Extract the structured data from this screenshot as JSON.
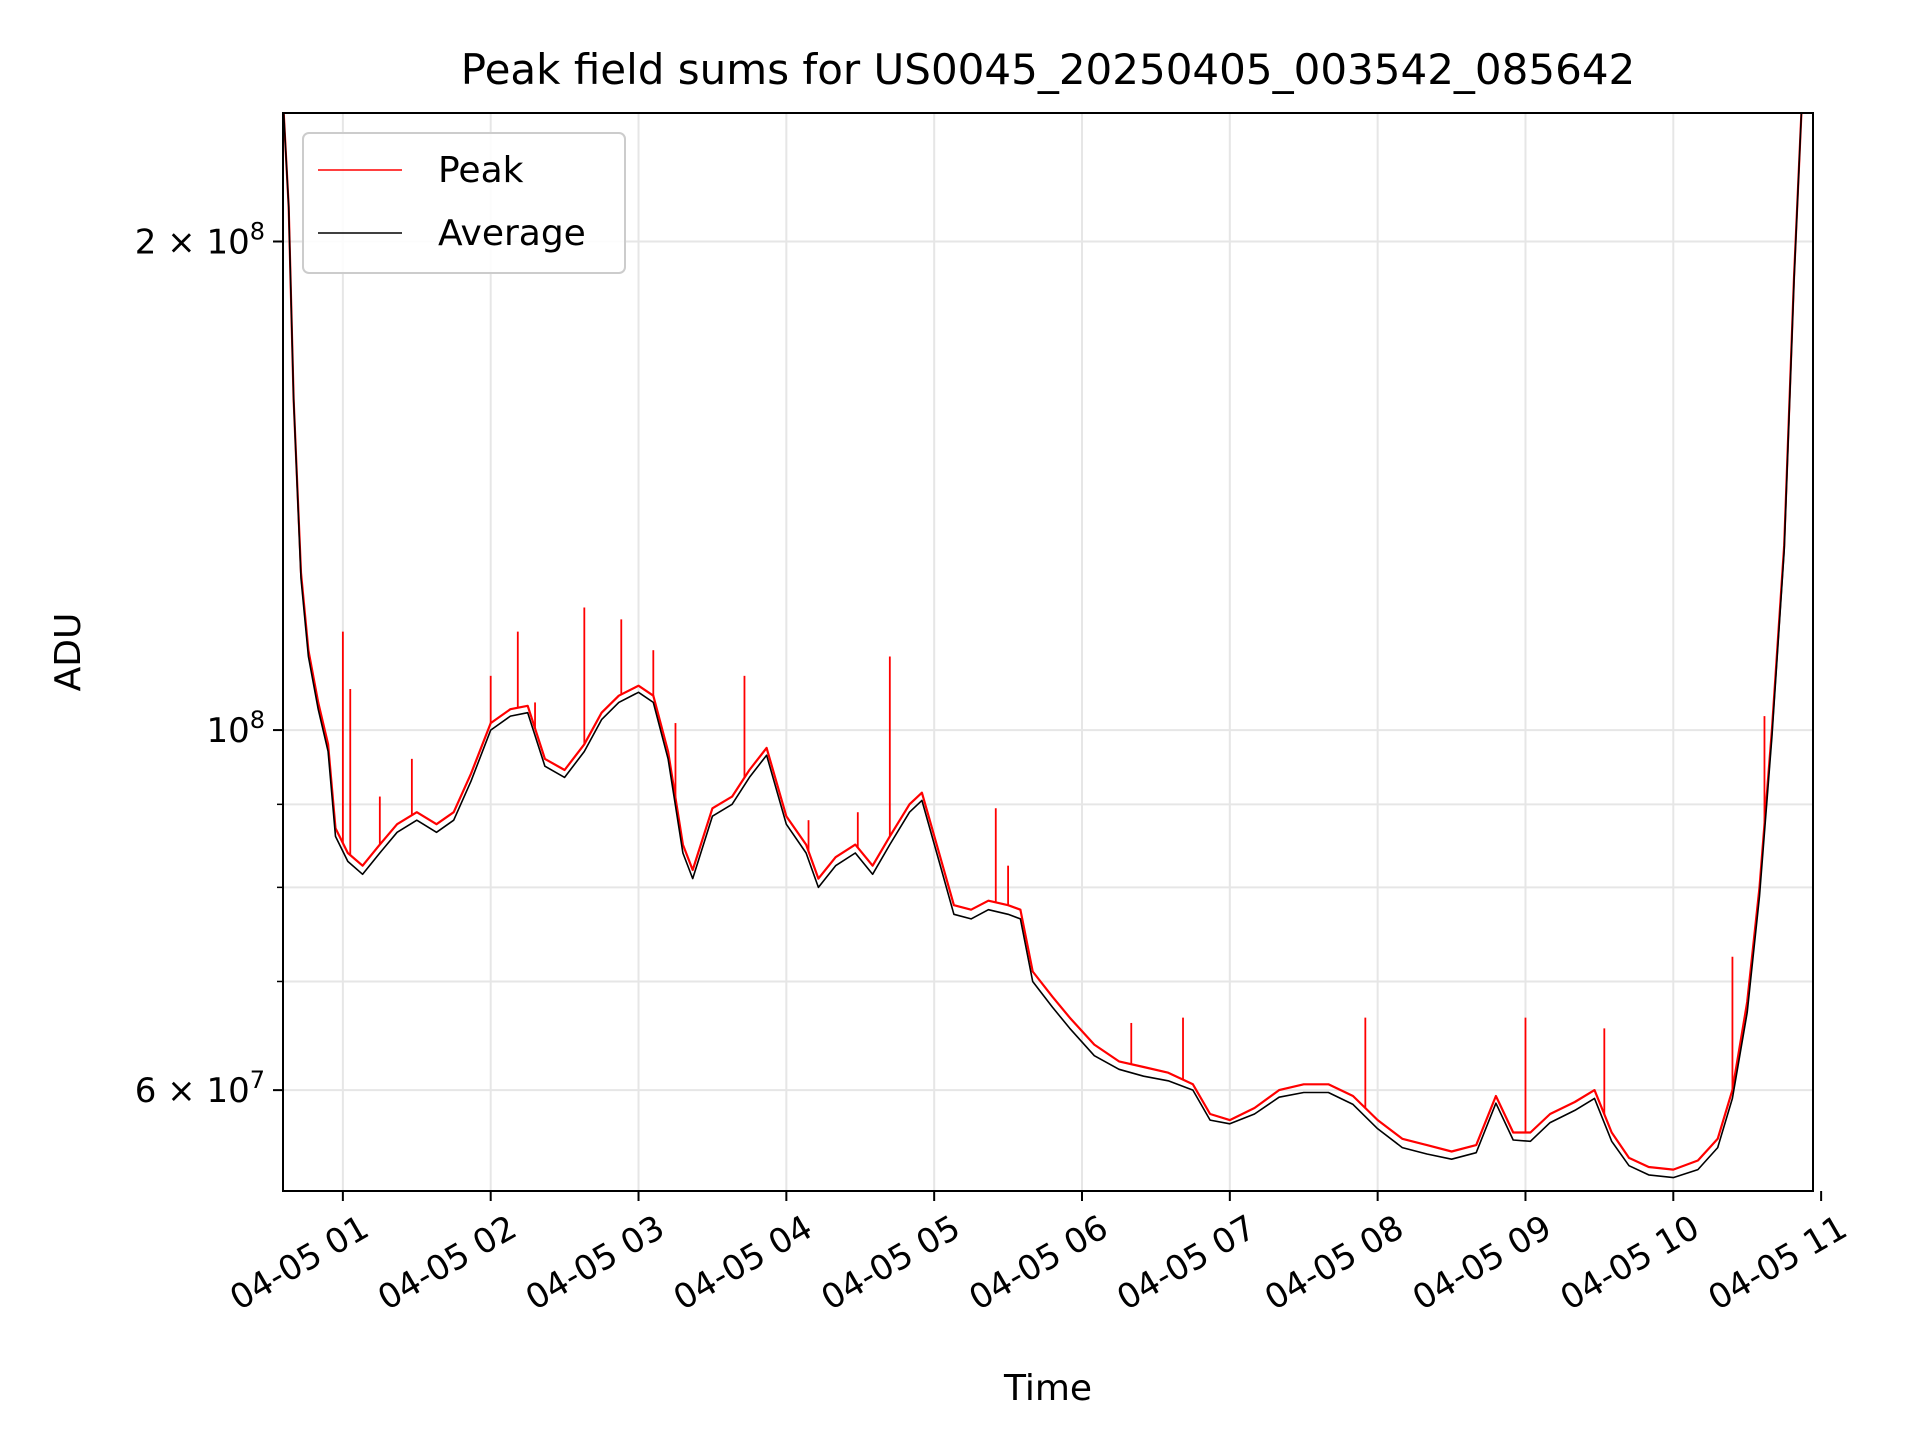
{
  "chart_data": {
    "type": "line",
    "title": "Peak field sums for US0045_20250405_003542_085642",
    "xlabel": "Time",
    "ylabel": "ADU",
    "yscale": "log",
    "xlim": [
      "2025-04-05T00:35:42",
      "2025-04-05T10:56:42"
    ],
    "ylim": [
      52000000,
      240000000
    ],
    "grid": true,
    "legend": {
      "placement": "top-left"
    },
    "x_ticks": [
      {
        "t": "2025-04-05T01:00",
        "label": "04-05 01"
      },
      {
        "t": "2025-04-05T02:00",
        "label": "04-05 02"
      },
      {
        "t": "2025-04-05T03:00",
        "label": "04-05 03"
      },
      {
        "t": "2025-04-05T04:00",
        "label": "04-05 04"
      },
      {
        "t": "2025-04-05T05:00",
        "label": "04-05 05"
      },
      {
        "t": "2025-04-05T06:00",
        "label": "04-05 06"
      },
      {
        "t": "2025-04-05T07:00",
        "label": "04-05 07"
      },
      {
        "t": "2025-04-05T08:00",
        "label": "04-05 08"
      },
      {
        "t": "2025-04-05T09:00",
        "label": "04-05 09"
      },
      {
        "t": "2025-04-05T10:00",
        "label": "04-05 10"
      },
      {
        "t": "2025-04-05T11:00",
        "label": "04-05 11"
      }
    ],
    "y_major_ticks": [
      {
        "value": 60000000,
        "mantissa": "6",
        "exponent": "7"
      },
      {
        "value": 100000000,
        "mantissa": "",
        "exponent": "8"
      },
      {
        "value": 200000000,
        "mantissa": "2",
        "exponent": "8"
      }
    ],
    "y_minor_gridlines": [
      70000000,
      80000000,
      90000000
    ],
    "series": [
      {
        "name": "Peak",
        "color": "#ff0000",
        "points": [
          [
            "2025-04-05T00:36",
            240000000
          ],
          [
            "2025-04-05T00:38",
            210000000
          ],
          [
            "2025-04-05T00:40",
            160000000
          ],
          [
            "2025-04-05T00:43",
            125000000
          ],
          [
            "2025-04-05T00:46",
            112000000
          ],
          [
            "2025-04-05T00:50",
            104000000
          ],
          [
            "2025-04-05T00:54",
            98000000
          ],
          [
            "2025-04-05T00:57",
            87000000
          ],
          [
            "2025-04-05T01:02",
            84000000
          ],
          [
            "2025-04-05T01:08",
            82500000
          ],
          [
            "2025-04-05T01:15",
            85000000
          ],
          [
            "2025-04-05T01:22",
            87500000
          ],
          [
            "2025-04-05T01:30",
            89000000
          ],
          [
            "2025-04-05T01:38",
            87500000
          ],
          [
            "2025-04-05T01:45",
            89000000
          ],
          [
            "2025-04-05T01:52",
            94000000
          ],
          [
            "2025-04-05T02:00",
            101000000
          ],
          [
            "2025-04-05T02:08",
            103000000
          ],
          [
            "2025-04-05T02:15",
            103500000
          ],
          [
            "2025-04-05T02:22",
            96000000
          ],
          [
            "2025-04-05T02:30",
            94500000
          ],
          [
            "2025-04-05T02:38",
            98000000
          ],
          [
            "2025-04-05T02:45",
            102500000
          ],
          [
            "2025-04-05T02:52",
            105000000
          ],
          [
            "2025-04-05T03:00",
            106500000
          ],
          [
            "2025-04-05T03:06",
            105000000
          ],
          [
            "2025-04-05T03:12",
            97000000
          ],
          [
            "2025-04-05T03:18",
            85000000
          ],
          [
            "2025-04-05T03:22",
            82000000
          ],
          [
            "2025-04-05T03:30",
            89500000
          ],
          [
            "2025-04-05T03:38",
            91000000
          ],
          [
            "2025-04-05T03:45",
            94500000
          ],
          [
            "2025-04-05T03:52",
            97500000
          ],
          [
            "2025-04-05T04:00",
            88500000
          ],
          [
            "2025-04-05T04:08",
            85000000
          ],
          [
            "2025-04-05T04:13",
            81000000
          ],
          [
            "2025-04-05T04:20",
            83500000
          ],
          [
            "2025-04-05T04:28",
            85000000
          ],
          [
            "2025-04-05T04:35",
            82500000
          ],
          [
            "2025-04-05T04:42",
            86000000
          ],
          [
            "2025-04-05T04:50",
            90000000
          ],
          [
            "2025-04-05T04:55",
            91500000
          ],
          [
            "2025-04-05T05:02",
            84000000
          ],
          [
            "2025-04-05T05:08",
            78000000
          ],
          [
            "2025-04-05T05:15",
            77500000
          ],
          [
            "2025-04-05T05:22",
            78500000
          ],
          [
            "2025-04-05T05:30",
            78000000
          ],
          [
            "2025-04-05T05:35",
            77500000
          ],
          [
            "2025-04-05T05:40",
            71000000
          ],
          [
            "2025-04-05T05:48",
            68500000
          ],
          [
            "2025-04-05T05:55",
            66500000
          ],
          [
            "2025-04-05T06:05",
            64000000
          ],
          [
            "2025-04-05T06:15",
            62500000
          ],
          [
            "2025-04-05T06:25",
            62000000
          ],
          [
            "2025-04-05T06:35",
            61500000
          ],
          [
            "2025-04-05T06:45",
            60500000
          ],
          [
            "2025-04-05T06:52",
            58000000
          ],
          [
            "2025-04-05T07:00",
            57500000
          ],
          [
            "2025-04-05T07:10",
            58500000
          ],
          [
            "2025-04-05T07:20",
            60000000
          ],
          [
            "2025-04-05T07:30",
            60500000
          ],
          [
            "2025-04-05T07:40",
            60500000
          ],
          [
            "2025-04-05T07:50",
            59500000
          ],
          [
            "2025-04-05T08:00",
            57500000
          ],
          [
            "2025-04-05T08:10",
            56000000
          ],
          [
            "2025-04-05T08:20",
            55500000
          ],
          [
            "2025-04-05T08:30",
            55000000
          ],
          [
            "2025-04-05T08:40",
            55500000
          ],
          [
            "2025-04-05T08:48",
            59500000
          ],
          [
            "2025-04-05T08:55",
            56500000
          ],
          [
            "2025-04-05T09:02",
            56500000
          ],
          [
            "2025-04-05T09:10",
            58000000
          ],
          [
            "2025-04-05T09:20",
            59000000
          ],
          [
            "2025-04-05T09:28",
            60000000
          ],
          [
            "2025-04-05T09:35",
            56500000
          ],
          [
            "2025-04-05T09:42",
            54500000
          ],
          [
            "2025-04-05T09:50",
            53800000
          ],
          [
            "2025-04-05T10:00",
            53600000
          ],
          [
            "2025-04-05T10:10",
            54300000
          ],
          [
            "2025-04-05T10:18",
            56000000
          ],
          [
            "2025-04-05T10:24",
            60000000
          ],
          [
            "2025-04-05T10:30",
            68000000
          ],
          [
            "2025-04-05T10:35",
            80000000
          ],
          [
            "2025-04-05T10:40",
            100000000
          ],
          [
            "2025-04-05T10:45",
            130000000
          ],
          [
            "2025-04-05T10:49",
            190000000
          ],
          [
            "2025-04-05T10:52",
            240000000
          ]
        ],
        "spikes": [
          [
            "2025-04-05T01:00",
            115000000
          ],
          [
            "2025-04-05T01:03",
            106000000
          ],
          [
            "2025-04-05T01:15",
            91000000
          ],
          [
            "2025-04-05T01:28",
            96000000
          ],
          [
            "2025-04-05T02:00",
            108000000
          ],
          [
            "2025-04-05T02:11",
            115000000
          ],
          [
            "2025-04-05T02:18",
            104000000
          ],
          [
            "2025-04-05T02:38",
            119000000
          ],
          [
            "2025-04-05T02:53",
            117000000
          ],
          [
            "2025-04-05T03:06",
            112000000
          ],
          [
            "2025-04-05T03:15",
            101000000
          ],
          [
            "2025-04-05T03:43",
            108000000
          ],
          [
            "2025-04-05T04:09",
            88000000
          ],
          [
            "2025-04-05T04:29",
            89000000
          ],
          [
            "2025-04-05T04:42",
            111000000
          ],
          [
            "2025-04-05T05:25",
            89500000
          ],
          [
            "2025-04-05T05:30",
            82500000
          ],
          [
            "2025-04-05T06:20",
            66000000
          ],
          [
            "2025-04-05T06:41",
            66500000
          ],
          [
            "2025-04-05T07:55",
            66500000
          ],
          [
            "2025-04-05T09:00",
            66500000
          ],
          [
            "2025-04-05T09:32",
            65500000
          ],
          [
            "2025-04-05T10:24",
            72500000
          ],
          [
            "2025-04-05T10:37",
            102000000
          ]
        ]
      },
      {
        "name": "Average",
        "color": "#000000",
        "points": [
          [
            "2025-04-05T00:36",
            240000000
          ],
          [
            "2025-04-05T00:38",
            210000000
          ],
          [
            "2025-04-05T00:40",
            160000000
          ],
          [
            "2025-04-05T00:43",
            124000000
          ],
          [
            "2025-04-05T00:46",
            111000000
          ],
          [
            "2025-04-05T00:50",
            103000000
          ],
          [
            "2025-04-05T00:54",
            97000000
          ],
          [
            "2025-04-05T00:57",
            86000000
          ],
          [
            "2025-04-05T01:02",
            83000000
          ],
          [
            "2025-04-05T01:08",
            81500000
          ],
          [
            "2025-04-05T01:15",
            84000000
          ],
          [
            "2025-04-05T01:22",
            86500000
          ],
          [
            "2025-04-05T01:30",
            88000000
          ],
          [
            "2025-04-05T01:38",
            86500000
          ],
          [
            "2025-04-05T01:45",
            88000000
          ],
          [
            "2025-04-05T01:52",
            93000000
          ],
          [
            "2025-04-05T02:00",
            100000000
          ],
          [
            "2025-04-05T02:08",
            102000000
          ],
          [
            "2025-04-05T02:15",
            102500000
          ],
          [
            "2025-04-05T02:22",
            95000000
          ],
          [
            "2025-04-05T02:30",
            93500000
          ],
          [
            "2025-04-05T02:38",
            97000000
          ],
          [
            "2025-04-05T02:45",
            101500000
          ],
          [
            "2025-04-05T02:52",
            104000000
          ],
          [
            "2025-04-05T03:00",
            105500000
          ],
          [
            "2025-04-05T03:06",
            104000000
          ],
          [
            "2025-04-05T03:12",
            96000000
          ],
          [
            "2025-04-05T03:18",
            84000000
          ],
          [
            "2025-04-05T03:22",
            81000000
          ],
          [
            "2025-04-05T03:30",
            88500000
          ],
          [
            "2025-04-05T03:38",
            90000000
          ],
          [
            "2025-04-05T03:45",
            93500000
          ],
          [
            "2025-04-05T03:52",
            96500000
          ],
          [
            "2025-04-05T04:00",
            87500000
          ],
          [
            "2025-04-05T04:08",
            84000000
          ],
          [
            "2025-04-05T04:13",
            80000000
          ],
          [
            "2025-04-05T04:20",
            82500000
          ],
          [
            "2025-04-05T04:28",
            84000000
          ],
          [
            "2025-04-05T04:35",
            81500000
          ],
          [
            "2025-04-05T04:42",
            85000000
          ],
          [
            "2025-04-05T04:50",
            89000000
          ],
          [
            "2025-04-05T04:55",
            90500000
          ],
          [
            "2025-04-05T05:02",
            83000000
          ],
          [
            "2025-04-05T05:08",
            77000000
          ],
          [
            "2025-04-05T05:15",
            76500000
          ],
          [
            "2025-04-05T05:22",
            77500000
          ],
          [
            "2025-04-05T05:30",
            77000000
          ],
          [
            "2025-04-05T05:35",
            76500000
          ],
          [
            "2025-04-05T05:40",
            70000000
          ],
          [
            "2025-04-05T05:48",
            67500000
          ],
          [
            "2025-04-05T05:55",
            65500000
          ],
          [
            "2025-04-05T06:05",
            63000000
          ],
          [
            "2025-04-05T06:15",
            61800000
          ],
          [
            "2025-04-05T06:25",
            61200000
          ],
          [
            "2025-04-05T06:35",
            60800000
          ],
          [
            "2025-04-05T06:45",
            60000000
          ],
          [
            "2025-04-05T06:52",
            57500000
          ],
          [
            "2025-04-05T07:00",
            57200000
          ],
          [
            "2025-04-05T07:10",
            58000000
          ],
          [
            "2025-04-05T07:20",
            59400000
          ],
          [
            "2025-04-05T07:30",
            59800000
          ],
          [
            "2025-04-05T07:40",
            59800000
          ],
          [
            "2025-04-05T07:50",
            58800000
          ],
          [
            "2025-04-05T08:00",
            56800000
          ],
          [
            "2025-04-05T08:10",
            55300000
          ],
          [
            "2025-04-05T08:20",
            54800000
          ],
          [
            "2025-04-05T08:30",
            54400000
          ],
          [
            "2025-04-05T08:40",
            54900000
          ],
          [
            "2025-04-05T08:48",
            58900000
          ],
          [
            "2025-04-05T08:55",
            55900000
          ],
          [
            "2025-04-05T09:02",
            55800000
          ],
          [
            "2025-04-05T09:10",
            57300000
          ],
          [
            "2025-04-05T09:20",
            58300000
          ],
          [
            "2025-04-05T09:28",
            59300000
          ],
          [
            "2025-04-05T09:35",
            55800000
          ],
          [
            "2025-04-05T09:42",
            53900000
          ],
          [
            "2025-04-05T09:50",
            53200000
          ],
          [
            "2025-04-05T10:00",
            53000000
          ],
          [
            "2025-04-05T10:10",
            53600000
          ],
          [
            "2025-04-05T10:18",
            55300000
          ],
          [
            "2025-04-05T10:24",
            59300000
          ],
          [
            "2025-04-05T10:30",
            67000000
          ],
          [
            "2025-04-05T10:35",
            79000000
          ],
          [
            "2025-04-05T10:40",
            99000000
          ],
          [
            "2025-04-05T10:45",
            129000000
          ],
          [
            "2025-04-05T10:49",
            189000000
          ],
          [
            "2025-04-05T10:52",
            240000000
          ]
        ]
      }
    ]
  }
}
